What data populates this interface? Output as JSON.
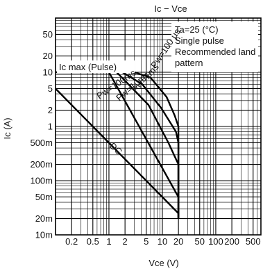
{
  "chart_data": {
    "type": "line",
    "title": "Ic − Vce",
    "xlabel": "Vce (V)",
    "ylabel": "Ic (A)",
    "x_scale": "log",
    "y_scale": "log",
    "xlim": [
      0.1,
      700
    ],
    "ylim": [
      0.01,
      100
    ],
    "grid": true,
    "x_tick_labels": [
      "0.2",
      "0.5",
      "1",
      "2",
      "5",
      "10",
      "20",
      "50",
      "100",
      "200",
      "500"
    ],
    "y_tick_labels": [
      "10m",
      "20m",
      "50m",
      "100m",
      "200m",
      "500m",
      "1",
      "2",
      "5",
      "10",
      "20",
      "50"
    ],
    "x_ticks": [
      0.2,
      0.5,
      1,
      2,
      5,
      10,
      20,
      50,
      100,
      200,
      500
    ],
    "y_ticks": [
      0.01,
      0.02,
      0.05,
      0.1,
      0.2,
      0.5,
      1,
      2,
      5,
      10,
      20,
      50
    ],
    "legend_lines": [
      "Ta=25 (°C)",
      "Single pulse",
      "Recommended land",
      "pattern"
    ],
    "annotations": [
      "Ic max (Pulse)"
    ],
    "series": [
      {
        "name": "DC",
        "x": [
          0.1,
          20,
          20
        ],
        "y": [
          5,
          0.025,
          0.02
        ]
      },
      {
        "name": "Pw=100ms",
        "x": [
          0.1,
          1,
          20,
          20
        ],
        "y": [
          10,
          10,
          0.05,
          0.02
        ]
      },
      {
        "name": "Pw=10ms",
        "x": [
          1.4,
          5.5,
          13,
          20,
          20
        ],
        "y": [
          10,
          2.5,
          0.5,
          0.2,
          0.02
        ]
      },
      {
        "name": "Pw=1ms",
        "x": [
          1.8,
          4.2,
          9.5,
          18,
          20,
          20
        ],
        "y": [
          10,
          6,
          2.2,
          0.8,
          0.5,
          0.02
        ]
      },
      {
        "name": "Pw=100 μs",
        "x": [
          3,
          6,
          12,
          17,
          20,
          20
        ],
        "y": [
          10,
          8,
          3.5,
          1.6,
          1.0,
          0.02
        ]
      }
    ]
  }
}
